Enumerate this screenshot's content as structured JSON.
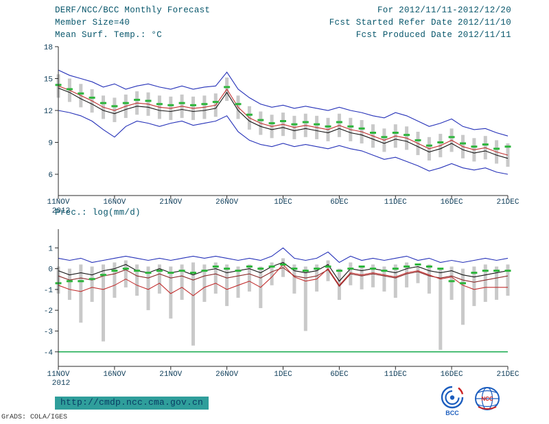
{
  "header": {
    "title": "DERF/NCC/BCC Monthly Forecast",
    "member_size": "Member Size=40",
    "for_range": "For 2012/11/11-2012/12/20",
    "ref_date": "Fcst Started Refer Date 2012/11/10",
    "produced_date": "Fcst Produced Date 2012/11/11"
  },
  "footer": {
    "url": "http://cmdp.ncc.cma.gov.cn",
    "credit": "GrADS: COLA/IGES",
    "logos": [
      "BCC",
      "NCC"
    ]
  },
  "colors": {
    "blue": "#2430b8",
    "red": "#c22f2f",
    "black": "#141414",
    "maroon": "#8a2a2a",
    "green": "#2db53c",
    "bar_gray": "#c9c9c9",
    "axis": "#2a2a2a",
    "header_ink": "#07566b",
    "url_bg": "#2f9e9b",
    "logo_blue": "#1b5dbe",
    "logo_red": "#cc2222"
  },
  "chart_data": [
    {
      "type": "line",
      "title": "Mean Surf. Temp.: °C",
      "xlabel": "",
      "ylabel": "",
      "xlim": [
        0,
        40
      ],
      "ylim": [
        4,
        18
      ],
      "yticks": [
        6,
        9,
        12,
        15,
        18
      ],
      "x_tick_days": [
        0,
        5,
        10,
        15,
        20,
        25,
        30,
        35,
        40
      ],
      "x_tick_labels": [
        "11NOV",
        "16NOV",
        "21NOV",
        "26NOV",
        "1DEC",
        "6DEC",
        "11DEC",
        "16DEC",
        "21DEC"
      ],
      "x_sub_label": "2012",
      "grid": false,
      "legend": "none",
      "series": [
        {
          "name": "ensemble-max",
          "color": "#2430b8",
          "values": [
            15.8,
            15.3,
            15.0,
            14.7,
            14.2,
            14.5,
            14.0,
            14.3,
            14.5,
            14.2,
            14.0,
            14.3,
            14.0,
            14.2,
            14.3,
            15.6,
            14.0,
            13.2,
            12.6,
            12.3,
            12.5,
            12.2,
            12.4,
            12.2,
            12.0,
            12.3,
            12.0,
            11.8,
            11.5,
            11.3,
            11.8,
            11.5,
            11.0,
            10.5,
            10.8,
            11.2,
            10.5,
            10.2,
            10.3,
            9.9,
            9.6
          ]
        },
        {
          "name": "ensemble-min",
          "color": "#2430b8",
          "values": [
            12.0,
            11.8,
            11.5,
            11.0,
            10.2,
            9.5,
            10.5,
            11.0,
            10.8,
            10.5,
            10.8,
            11.0,
            10.6,
            10.8,
            11.0,
            11.5,
            10.0,
            9.2,
            8.8,
            8.6,
            8.9,
            8.6,
            8.8,
            8.6,
            8.4,
            8.7,
            8.4,
            8.2,
            7.8,
            7.4,
            7.6,
            7.2,
            6.8,
            6.3,
            6.6,
            7.0,
            6.6,
            6.4,
            6.6,
            6.2,
            6.0
          ]
        },
        {
          "name": "ensemble-mean",
          "color": "#c22f2f",
          "values": [
            14.3,
            13.9,
            13.4,
            12.9,
            12.3,
            12.0,
            12.4,
            12.7,
            12.6,
            12.3,
            12.2,
            12.4,
            12.2,
            12.3,
            12.5,
            14.0,
            12.3,
            11.3,
            10.8,
            10.5,
            10.7,
            10.4,
            10.6,
            10.4,
            10.2,
            10.6,
            10.2,
            10.0,
            9.6,
            9.2,
            9.6,
            9.4,
            8.9,
            8.4,
            8.7,
            9.2,
            8.6,
            8.3,
            8.5,
            8.1,
            7.8
          ]
        },
        {
          "name": "control",
          "color": "#141414",
          "values": [
            14.1,
            13.7,
            13.1,
            12.6,
            12.0,
            11.7,
            12.1,
            12.4,
            12.3,
            12.0,
            11.9,
            12.1,
            11.9,
            12.0,
            12.2,
            13.7,
            12.0,
            11.0,
            10.5,
            10.2,
            10.4,
            10.1,
            10.3,
            10.1,
            9.9,
            10.3,
            9.9,
            9.7,
            9.3,
            8.9,
            9.3,
            9.1,
            8.6,
            8.1,
            8.4,
            8.9,
            8.3,
            8.0,
            8.2,
            7.8,
            7.5
          ]
        }
      ],
      "markers": {
        "name": "climatology",
        "color": "#2db53c",
        "values": [
          14.4,
          14.0,
          13.6,
          13.2,
          12.7,
          12.4,
          12.7,
          13.0,
          12.9,
          12.6,
          12.5,
          12.7,
          12.5,
          12.6,
          12.8,
          14.2,
          12.6,
          11.6,
          11.1,
          10.8,
          11.0,
          10.7,
          10.9,
          10.7,
          10.5,
          10.9,
          10.5,
          10.3,
          9.9,
          9.5,
          9.9,
          9.7,
          9.2,
          8.7,
          9.0,
          9.5,
          8.9,
          8.6,
          8.8,
          8.4,
          8.6
        ]
      },
      "bars": {
        "name": "ensemble-spread",
        "color": "#c9c9c9",
        "high": [
          15.4,
          15.0,
          14.5,
          14.0,
          13.4,
          13.2,
          13.5,
          13.8,
          13.7,
          13.4,
          13.3,
          13.5,
          13.3,
          13.4,
          13.6,
          15.1,
          13.4,
          12.4,
          11.9,
          11.6,
          11.8,
          11.5,
          11.7,
          11.5,
          11.3,
          11.7,
          11.3,
          11.1,
          10.7,
          10.3,
          10.7,
          10.5,
          10.0,
          9.5,
          9.8,
          10.3,
          9.7,
          9.4,
          9.6,
          9.2,
          8.9
        ],
        "low": [
          13.2,
          12.8,
          12.3,
          11.8,
          11.2,
          10.9,
          11.3,
          11.6,
          11.5,
          11.2,
          11.1,
          11.3,
          11.1,
          11.2,
          11.4,
          12.9,
          11.2,
          10.2,
          9.7,
          9.4,
          9.6,
          9.3,
          9.5,
          9.3,
          9.1,
          9.5,
          9.1,
          8.9,
          8.5,
          8.1,
          8.5,
          8.3,
          7.8,
          7.3,
          7.6,
          8.1,
          7.5,
          7.2,
          7.4,
          7.0,
          6.7
        ]
      }
    },
    {
      "type": "line",
      "title": "Prec.: log(mm/d)",
      "xlabel": "",
      "ylabel": "",
      "xlim": [
        0,
        40
      ],
      "ylim": [
        -4.7,
        1.9
      ],
      "yticks": [
        1,
        0,
        -1,
        -2,
        -3,
        -4
      ],
      "x_tick_days": [
        0,
        5,
        10,
        15,
        20,
        25,
        30,
        35,
        40
      ],
      "x_tick_labels": [
        "11NOV",
        "16NOV",
        "21NOV",
        "26NOV",
        "1DEC",
        "6DEC",
        "11DEC",
        "16DEC",
        "21DEC"
      ],
      "x_sub_label": "2012",
      "grid": false,
      "legend": "none",
      "hline": {
        "y": -4,
        "color": "#00a33c"
      },
      "series": [
        {
          "name": "ensemble-max",
          "color": "#2430b8",
          "values": [
            0.5,
            0.4,
            0.5,
            0.3,
            0.4,
            0.5,
            0.6,
            0.5,
            0.4,
            0.5,
            0.4,
            0.5,
            0.6,
            0.5,
            0.6,
            0.5,
            0.4,
            0.5,
            0.4,
            0.6,
            1.0,
            0.5,
            0.4,
            0.5,
            0.8,
            0.3,
            0.6,
            0.4,
            0.5,
            0.4,
            0.5,
            0.6,
            0.4,
            0.5,
            0.3,
            0.4,
            0.3,
            0.4,
            0.5,
            0.4,
            0.5
          ]
        },
        {
          "name": "ensemble-mean",
          "color": "#141414",
          "values": [
            -0.1,
            -0.3,
            -0.2,
            -0.3,
            -0.1,
            0.0,
            0.2,
            -0.1,
            -0.2,
            0.0,
            -0.2,
            -0.1,
            -0.3,
            -0.1,
            0.0,
            -0.2,
            -0.1,
            0.0,
            -0.2,
            0.1,
            0.3,
            -0.1,
            -0.2,
            -0.1,
            0.2,
            -0.6,
            0.0,
            -0.1,
            0.0,
            -0.1,
            -0.2,
            0.0,
            0.1,
            -0.1,
            -0.2,
            -0.1,
            -0.3,
            -0.4,
            -0.3,
            -0.2,
            -0.1
          ]
        },
        {
          "name": "control",
          "color": "#8a2a2a",
          "values": [
            -0.35,
            -0.55,
            -0.45,
            -0.55,
            -0.35,
            -0.25,
            -0.05,
            -0.35,
            -0.45,
            -0.25,
            -0.45,
            -0.35,
            -0.55,
            -0.35,
            -0.25,
            -0.45,
            -0.35,
            -0.25,
            -0.45,
            -0.15,
            0.05,
            -0.35,
            -0.45,
            -0.35,
            -0.05,
            -0.85,
            -0.25,
            -0.35,
            -0.25,
            -0.35,
            -0.45,
            -0.25,
            -0.15,
            -0.35,
            -0.45,
            -0.35,
            -0.55,
            -0.65,
            -0.55,
            -0.45,
            -0.35
          ]
        },
        {
          "name": "ensemble-min",
          "color": "#c22f2f",
          "values": [
            -0.8,
            -1.0,
            -1.1,
            -0.9,
            -1.0,
            -0.8,
            -0.5,
            -0.8,
            -1.0,
            -0.7,
            -1.2,
            -0.9,
            -1.3,
            -0.9,
            -0.7,
            -1.0,
            -0.8,
            -0.6,
            -0.9,
            -0.4,
            0.2,
            -0.4,
            -0.6,
            -0.5,
            0.0,
            -0.8,
            -0.2,
            -0.3,
            -0.2,
            -0.3,
            -0.4,
            -0.2,
            -0.1,
            -0.3,
            -0.5,
            -0.4,
            -0.8,
            -1.0,
            -0.9,
            -0.9,
            -0.9
          ]
        }
      ],
      "markers": {
        "name": "climatology",
        "color": "#2db53c",
        "values": [
          -0.7,
          -0.6,
          -0.6,
          -0.5,
          -0.3,
          -0.1,
          0.0,
          -0.1,
          -0.2,
          -0.1,
          -0.2,
          -0.1,
          -0.2,
          -0.1,
          0.1,
          0.0,
          -0.1,
          0.1,
          0.0,
          0.1,
          0.2,
          0.0,
          -0.1,
          0.0,
          0.1,
          -0.1,
          0.0,
          0.1,
          0.0,
          -0.1,
          0.0,
          0.1,
          0.2,
          0.1,
          0.0,
          -0.6,
          -0.7,
          -0.2,
          -0.1,
          -0.1,
          -0.1
        ]
      },
      "bars": {
        "name": "ensemble-spread",
        "color": "#c9c9c9",
        "high": [
          0.1,
          0.0,
          0.2,
          0.1,
          0.2,
          0.3,
          0.4,
          0.2,
          0.1,
          0.2,
          0.1,
          0.2,
          0.3,
          0.2,
          0.3,
          0.2,
          0.1,
          0.2,
          0.1,
          0.3,
          0.5,
          0.2,
          0.1,
          0.2,
          0.4,
          0.0,
          0.3,
          0.1,
          0.2,
          0.1,
          0.2,
          0.3,
          0.1,
          0.2,
          0.0,
          0.1,
          0.0,
          0.1,
          0.2,
          0.1,
          0.2
        ],
        "low": [
          -1.2,
          -1.5,
          -2.6,
          -1.6,
          -3.5,
          -1.4,
          -0.9,
          -1.3,
          -2.0,
          -1.2,
          -2.4,
          -1.5,
          -3.7,
          -1.6,
          -1.2,
          -1.8,
          -1.4,
          -1.1,
          -1.9,
          -0.8,
          -0.4,
          -1.2,
          -3.0,
          -1.1,
          -0.6,
          -1.5,
          -0.8,
          -1.0,
          -0.9,
          -1.1,
          -1.4,
          -0.9,
          -0.7,
          -1.2,
          -3.9,
          -1.5,
          -2.7,
          -1.8,
          -1.6,
          -1.5,
          -1.3
        ]
      }
    }
  ]
}
